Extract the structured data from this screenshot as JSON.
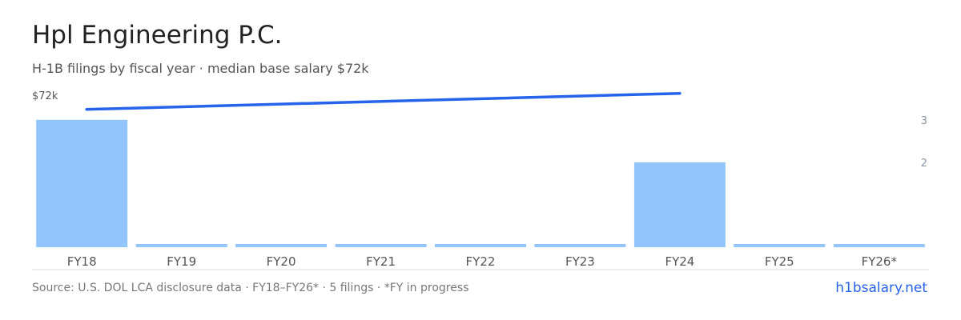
{
  "header": {
    "title": "Hpl Engineering P.C.",
    "subtitle": "H-1B filings by fiscal year · median base salary $72k"
  },
  "footer": {
    "source": "Source: U.S. DOL LCA disclosure data · FY18–FY26* · 5 filings · *FY in progress",
    "site": "h1bsalary.net"
  },
  "colors": {
    "bar": "#93c5fd",
    "line": "#2563eb",
    "axis": "#d9d9d9",
    "tick_text": "#555555",
    "right_tick_text": "#8a94a6"
  },
  "chart_data": {
    "type": "bar",
    "categories": [
      "FY18",
      "FY19",
      "FY20",
      "FY21",
      "FY22",
      "FY23",
      "FY24",
      "FY25",
      "FY26*"
    ],
    "series": [
      {
        "values": [
          3,
          0,
          0,
          0,
          0,
          0,
          2,
          0,
          0
        ]
      },
      {
        "type": "line",
        "x": [
          "FY18",
          "FY24"
        ],
        "values": [
          71000,
          72500
        ]
      }
    ],
    "y_right": {
      "ticks": [
        "2",
        "3"
      ],
      "range": [
        0,
        3.6
      ]
    },
    "y_left": {
      "label": "$72k"
    },
    "grid": false,
    "legend": "none"
  }
}
